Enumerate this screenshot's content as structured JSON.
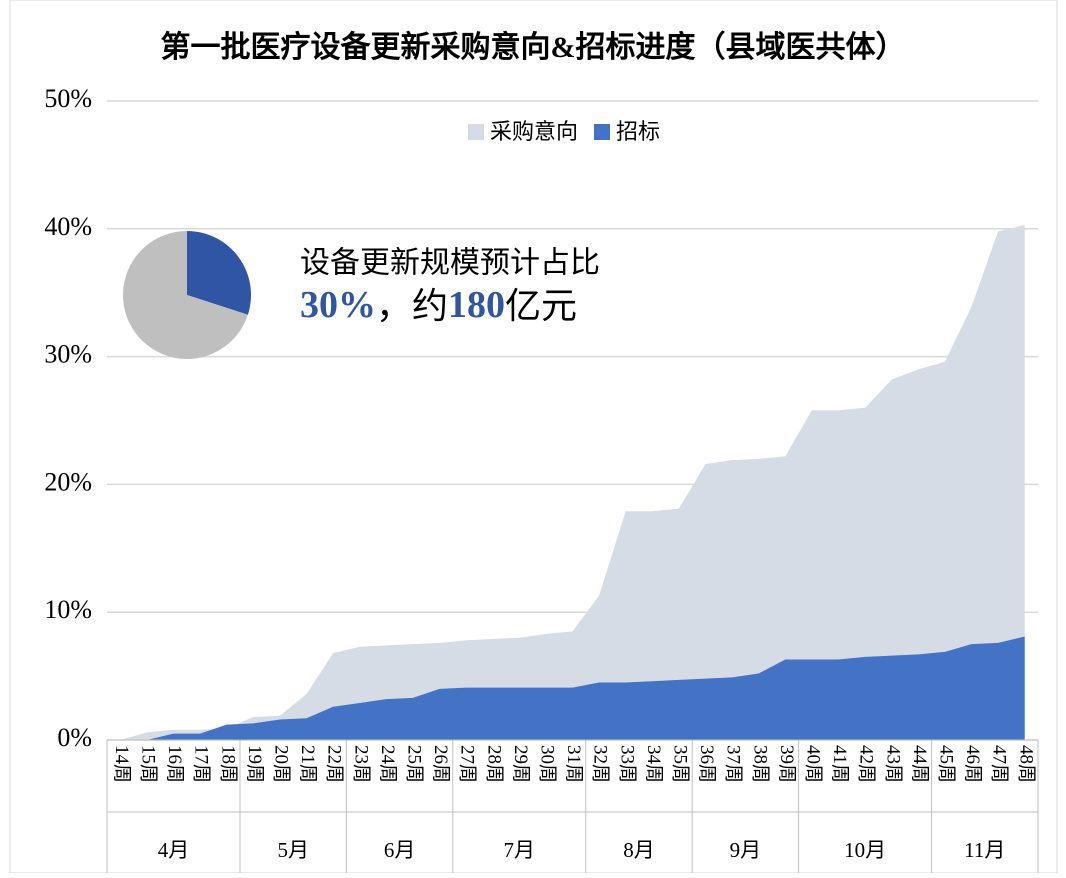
{
  "chart_data": {
    "type": "area",
    "title": "第一批医疗设备更新采购意向&招标进度（县域医共体）",
    "categories": [
      "14周",
      "15周",
      "16周",
      "17周",
      "18周",
      "19周",
      "20周",
      "21周",
      "22周",
      "23周",
      "24周",
      "25周",
      "26周",
      "27周",
      "28周",
      "29周",
      "30周",
      "31周",
      "32周",
      "33周",
      "34周",
      "35周",
      "36周",
      "37周",
      "38周",
      "39周",
      "40周",
      "41周",
      "42周",
      "43周",
      "44周",
      "45周",
      "46周",
      "47周",
      "48周"
    ],
    "x_groups": [
      {
        "label": "4月",
        "count": 5
      },
      {
        "label": "5月",
        "count": 4
      },
      {
        "label": "6月",
        "count": 4
      },
      {
        "label": "7月",
        "count": 5
      },
      {
        "label": "8月",
        "count": 4
      },
      {
        "label": "9月",
        "count": 4
      },
      {
        "label": "10月",
        "count": 5
      },
      {
        "label": "11月",
        "count": 4
      }
    ],
    "series": [
      {
        "name": "采购意向",
        "color": "#d6dce5",
        "values": [
          0,
          0.6,
          0.8,
          0.8,
          0.9,
          1.8,
          1.9,
          3.6,
          6.8,
          7.3,
          7.4,
          7.5,
          7.6,
          7.8,
          7.9,
          8.0,
          8.3,
          8.5,
          11.3,
          17.9,
          17.9,
          18.1,
          21.6,
          21.9,
          22.0,
          22.2,
          25.8,
          25.8,
          26.0,
          28.2,
          29.0,
          29.6,
          33.9,
          39.8,
          40.3
        ]
      },
      {
        "name": "招标",
        "color": "#4472c4",
        "values": [
          0,
          0,
          0.5,
          0.5,
          1.2,
          1.3,
          1.6,
          1.7,
          2.6,
          2.9,
          3.2,
          3.3,
          4.0,
          4.1,
          4.1,
          4.1,
          4.1,
          4.1,
          4.5,
          4.5,
          4.6,
          4.7,
          4.8,
          4.9,
          5.2,
          6.3,
          6.3,
          6.3,
          6.5,
          6.6,
          6.7,
          6.9,
          7.5,
          7.6,
          8.1
        ]
      }
    ],
    "ylim": [
      0,
      50
    ],
    "yticks": [
      {
        "value": 0,
        "label": "0%"
      },
      {
        "value": 10,
        "label": "10%"
      },
      {
        "value": 20,
        "label": "20%"
      },
      {
        "value": 30,
        "label": "30%"
      },
      {
        "value": 40,
        "label": "40%"
      },
      {
        "value": 50,
        "label": "50%"
      }
    ],
    "grid": true,
    "legend": "top",
    "inset_pie": {
      "type": "pie",
      "values": [
        30,
        70
      ],
      "colors": [
        "#2f55a4",
        "#bfbfbf"
      ]
    },
    "annotation": {
      "line1": "设备更新规模预计占比",
      "line2": [
        {
          "text": "30%",
          "highlight": true
        },
        {
          "text": "，约",
          "highlight": false
        },
        {
          "text": "180",
          "highlight": true
        },
        {
          "text": "亿元",
          "highlight": false
        }
      ],
      "highlight_color": "#2f55a4"
    }
  }
}
